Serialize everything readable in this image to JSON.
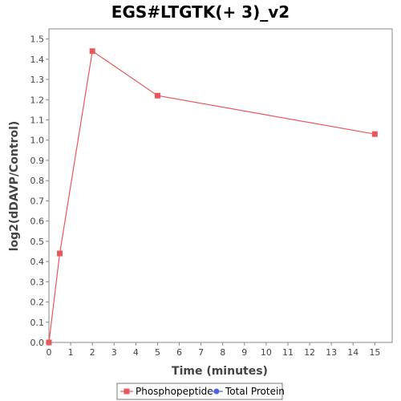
{
  "chart_data": {
    "type": "line",
    "title": "EGS#LTGTK(+ 3)_v2",
    "xlabel": "Time (minutes)",
    "ylabel": "log2(dDAVP/Control)",
    "xlim": [
      0,
      15.8
    ],
    "ylim": [
      0,
      1.55
    ],
    "x_ticks": [
      "0",
      "1",
      "2",
      "3",
      "4",
      "5",
      "6",
      "7",
      "8",
      "9",
      "10",
      "11",
      "12",
      "13",
      "14",
      "15"
    ],
    "y_ticks": [
      "0.0",
      "0.1",
      "0.2",
      "0.3",
      "0.4",
      "0.5",
      "0.6",
      "0.7",
      "0.8",
      "0.9",
      "1.0",
      "1.1",
      "1.2",
      "1.3",
      "1.4",
      "1.5"
    ],
    "grid": false,
    "legend_position": "bottom",
    "series": [
      {
        "name": "Phosphopeptide",
        "color": "#e8585a",
        "marker": "square",
        "points": [
          {
            "x": 0,
            "y": 0.0
          },
          {
            "x": 0.5,
            "y": 0.44
          },
          {
            "x": 2,
            "y": 1.44
          },
          {
            "x": 5,
            "y": 1.22
          },
          {
            "x": 15,
            "y": 1.03
          }
        ]
      },
      {
        "name": "Total Protein",
        "color": "#5560e0",
        "marker": "circle",
        "points": []
      }
    ]
  }
}
